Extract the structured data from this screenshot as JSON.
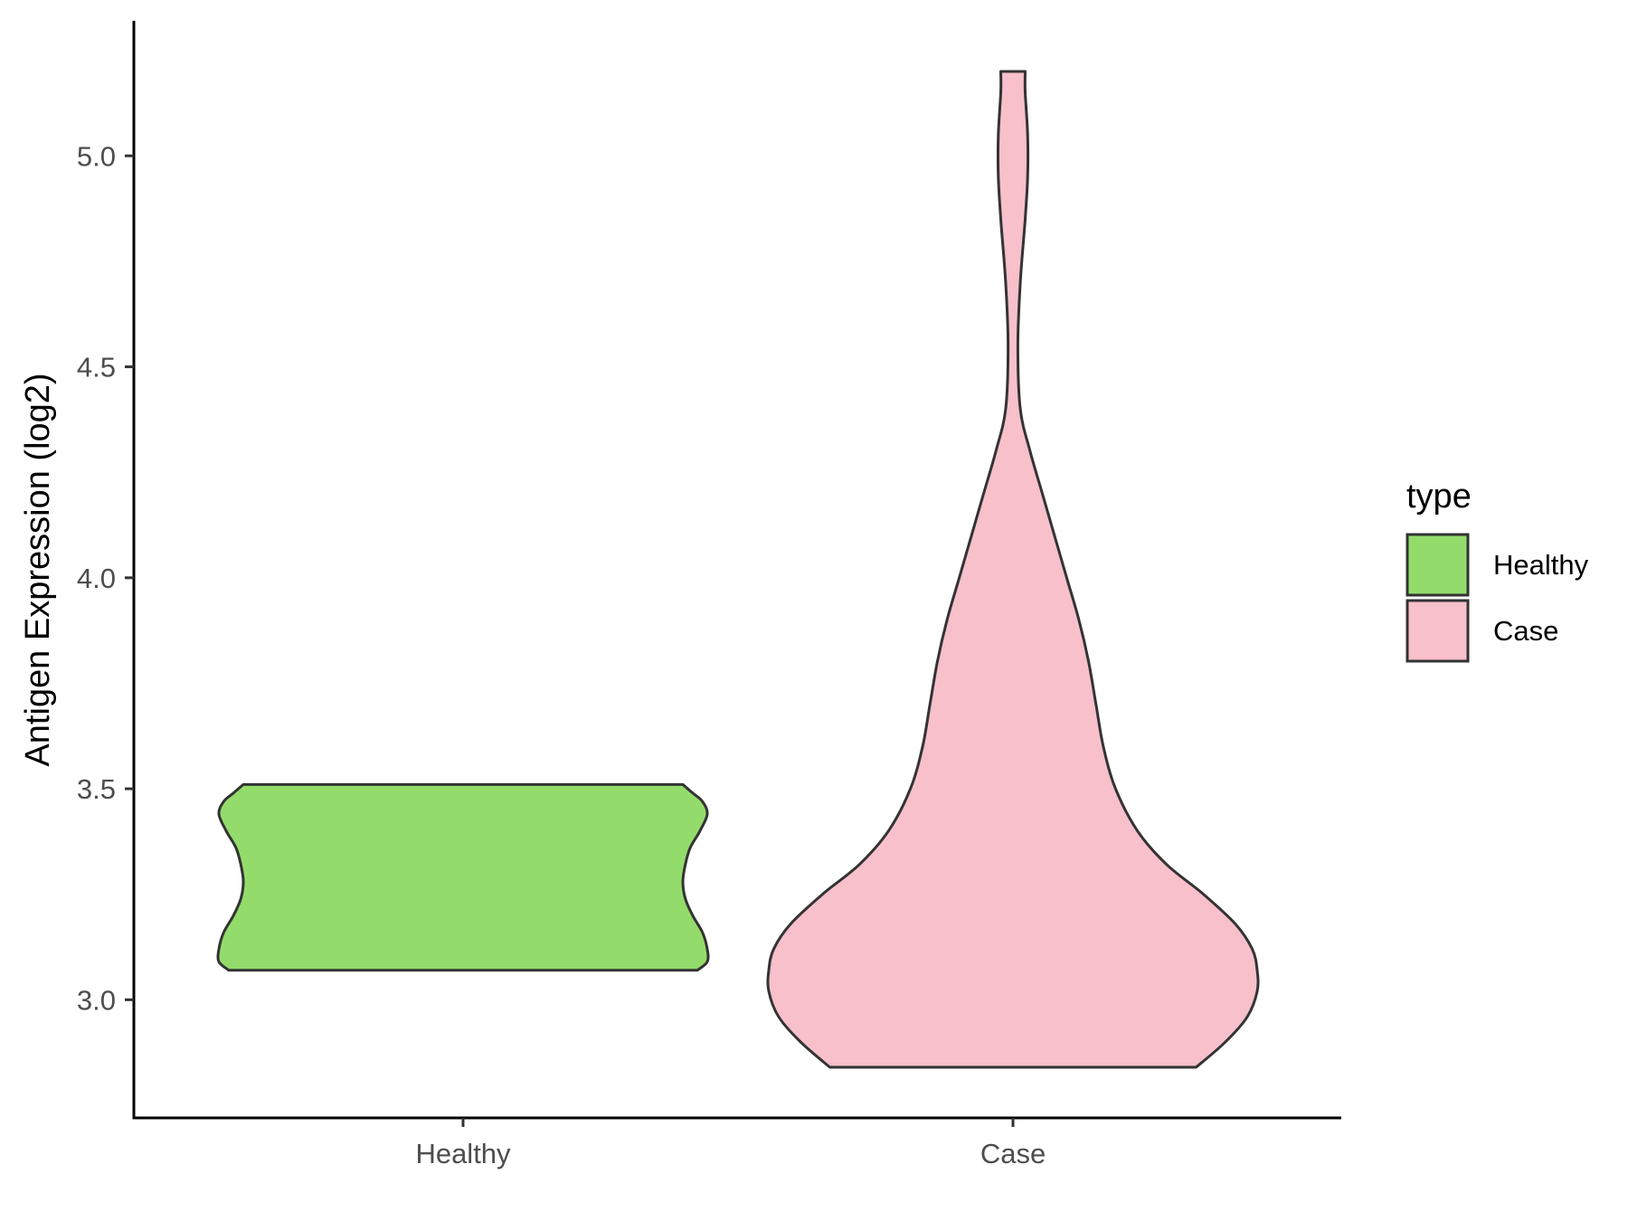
{
  "chart_data": {
    "type": "violin",
    "xlabel": "",
    "ylabel": "Antigen Expression (log2)",
    "categories": [
      "Healthy",
      "Case"
    ],
    "ylim": [
      2.72,
      5.32
    ],
    "yticks": [
      "3.0",
      "3.5",
      "4.0",
      "4.5",
      "5.0"
    ],
    "grid": false,
    "legend": {
      "title": "type",
      "position": "right",
      "items": [
        {
          "label": "Healthy",
          "color": "#93dc6b"
        },
        {
          "label": "Case",
          "color": "#f7c0cb"
        }
      ]
    },
    "series": [
      {
        "category": "Healthy",
        "color": "#93dc6b",
        "y_min": 3.07,
        "y_max": 3.51,
        "density_profile": [
          [
            3.07,
            0.96
          ],
          [
            3.09,
            1.0
          ],
          [
            3.12,
            1.0
          ],
          [
            3.16,
            0.98
          ],
          [
            3.2,
            0.94
          ],
          [
            3.24,
            0.91
          ],
          [
            3.28,
            0.9
          ],
          [
            3.32,
            0.91
          ],
          [
            3.36,
            0.93
          ],
          [
            3.4,
            0.97
          ],
          [
            3.44,
            1.0
          ],
          [
            3.47,
            0.98
          ],
          [
            3.49,
            0.94
          ],
          [
            3.51,
            0.9
          ]
        ]
      },
      {
        "category": "Case",
        "color": "#f7c0cb",
        "y_min": 2.84,
        "y_max": 5.2,
        "density_profile": [
          [
            2.84,
            0.75
          ],
          [
            2.9,
            0.87
          ],
          [
            2.96,
            0.96
          ],
          [
            3.02,
            1.0
          ],
          [
            3.07,
            1.0
          ],
          [
            3.12,
            0.98
          ],
          [
            3.18,
            0.91
          ],
          [
            3.25,
            0.78
          ],
          [
            3.32,
            0.63
          ],
          [
            3.4,
            0.51
          ],
          [
            3.5,
            0.42
          ],
          [
            3.6,
            0.37
          ],
          [
            3.7,
            0.34
          ],
          [
            3.8,
            0.31
          ],
          [
            3.9,
            0.27
          ],
          [
            4.0,
            0.22
          ],
          [
            4.1,
            0.17
          ],
          [
            4.2,
            0.12
          ],
          [
            4.3,
            0.07
          ],
          [
            4.4,
            0.03
          ],
          [
            4.55,
            0.02
          ],
          [
            4.7,
            0.03
          ],
          [
            4.85,
            0.05
          ],
          [
            4.95,
            0.06
          ],
          [
            5.05,
            0.06
          ],
          [
            5.15,
            0.05
          ],
          [
            5.2,
            0.05
          ]
        ]
      }
    ]
  }
}
